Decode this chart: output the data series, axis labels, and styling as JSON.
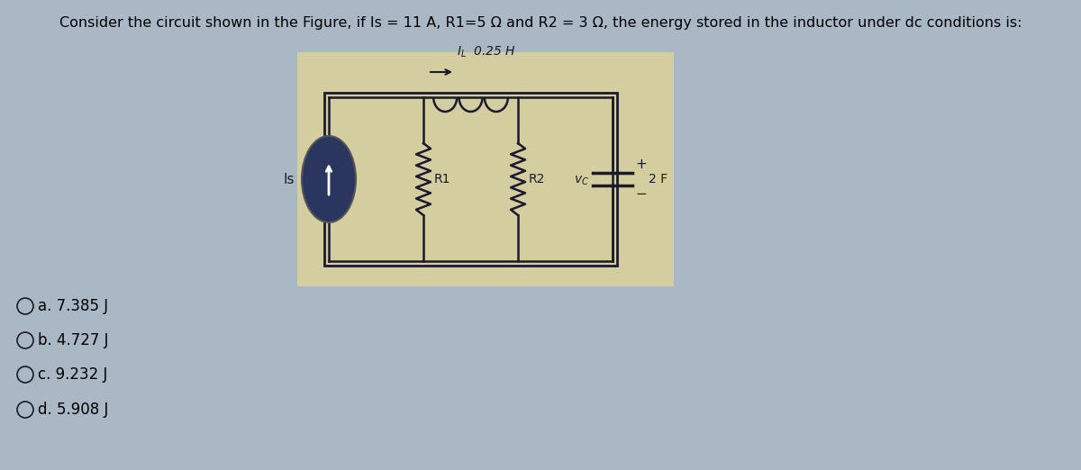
{
  "title": "Consider the circuit shown in the Figure, if Is = 11 A, R1=5 Ω and R2 = 3 Ω, the energy stored in the inductor under dc conditions is:",
  "title_fontsize": 11.5,
  "bg_color": "#aab8c6",
  "box_bg_color": "#d4cda0",
  "options": [
    "Oa. 7.385 J",
    "Ob. 4.727 J",
    "Oc. 9.232 J",
    "Od. 5.908 J"
  ],
  "line_color": "#1a1a2e",
  "text_color": "#000000"
}
